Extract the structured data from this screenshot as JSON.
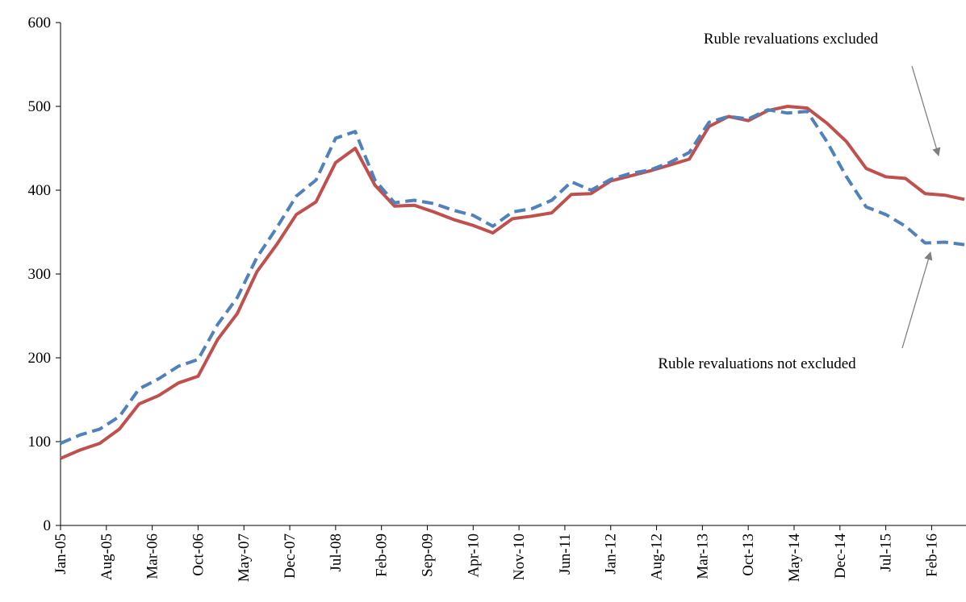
{
  "chart_data": {
    "type": "line",
    "x": [
      "Jan-05",
      "Apr-05",
      "Jul-05",
      "Oct-05",
      "Jan-06",
      "Apr-06",
      "Jul-06",
      "Oct-06",
      "Jan-07",
      "Apr-07",
      "Jul-07",
      "Oct-07",
      "Jan-08",
      "Apr-08",
      "Jul-08",
      "Oct-08",
      "Jan-09",
      "Apr-09",
      "Jul-09",
      "Oct-09",
      "Jan-10",
      "Apr-10",
      "Jul-10",
      "Oct-10",
      "Jan-11",
      "Apr-11",
      "Jul-11",
      "Oct-11",
      "Jan-12",
      "Apr-12",
      "Jul-12",
      "Oct-12",
      "Jan-13",
      "Apr-13",
      "Jul-13",
      "Oct-13",
      "Jan-14",
      "Apr-14",
      "Jul-14",
      "Oct-14",
      "Jan-15",
      "Apr-15",
      "Jul-15",
      "Oct-15",
      "Jan-16",
      "Apr-16",
      "Jul-16"
    ],
    "xlim": [
      "Jan-05",
      "Jul-16"
    ],
    "xticks": [
      "Jan-05",
      "Aug-05",
      "Mar-06",
      "Oct-06",
      "May-07",
      "Dec-07",
      "Jul-08",
      "Feb-09",
      "Sep-09",
      "Apr-10",
      "Nov-10",
      "Jun-11",
      "Jan-12",
      "Aug-12",
      "Mar-13",
      "Oct-13",
      "May-14",
      "Dec-14",
      "Jul-15",
      "Feb-16"
    ],
    "ylim": [
      0,
      600
    ],
    "yticks": [
      0,
      100,
      200,
      300,
      400,
      500,
      600
    ],
    "series": [
      {
        "color": "#c0504d",
        "dashed": false,
        "values": [
          80,
          90,
          98,
          115,
          145,
          155,
          170,
          178,
          222,
          253,
          303,
          335,
          371,
          386,
          433,
          450,
          406,
          381,
          382,
          374,
          365,
          358,
          349,
          366,
          369,
          373,
          395,
          396,
          411,
          417,
          423,
          430,
          437,
          476,
          488,
          483,
          495,
          500,
          498,
          480,
          458,
          426,
          416,
          414,
          396,
          394,
          389
        ]
      },
      {
        "color": "#4f81bd",
        "dashed": true,
        "values": [
          98,
          108,
          115,
          130,
          163,
          175,
          190,
          198,
          240,
          272,
          320,
          355,
          393,
          412,
          462,
          470,
          412,
          385,
          388,
          384,
          376,
          370,
          357,
          374,
          378,
          388,
          410,
          400,
          413,
          420,
          424,
          433,
          445,
          481,
          488,
          485,
          496,
          492,
          494,
          458,
          416,
          380,
          371,
          357,
          337,
          338,
          335
        ]
      }
    ],
    "annotations": [
      "Ruble revaluations excluded",
      "Ruble revaluations not excluded"
    ]
  }
}
